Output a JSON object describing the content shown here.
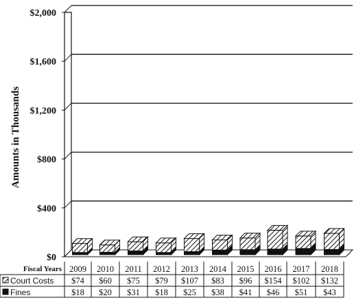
{
  "chart_data": {
    "type": "bar",
    "stacked": true,
    "three_d": true,
    "ylabel": "Amounts in Thousands",
    "ylim": [
      0,
      2000
    ],
    "yticks": [
      0,
      400,
      800,
      1200,
      1600,
      2000
    ],
    "ytick_labels": [
      "$0",
      "$400",
      "$800",
      "$1,200",
      "$1,600",
      "$2,000"
    ],
    "grid": true,
    "table_header": "Fiscal Years",
    "categories": [
      "2009",
      "2010",
      "2011",
      "2012",
      "2013",
      "2014",
      "2015",
      "2016",
      "2017",
      "2018"
    ],
    "series": [
      {
        "name": "Fines",
        "pattern": "solid",
        "color": "#111111",
        "values": [
          18,
          20,
          31,
          18,
          25,
          38,
          41,
          46,
          51,
          43
        ],
        "labels": [
          "$18",
          "$20",
          "$31",
          "$18",
          "$25",
          "$38",
          "$41",
          "$46",
          "$51",
          "$43"
        ]
      },
      {
        "name": "Court Costs",
        "pattern": "diagonal-hatch",
        "color": "#111111",
        "values": [
          74,
          60,
          75,
          79,
          107,
          83,
          96,
          154,
          102,
          132
        ],
        "labels": [
          "$74",
          "$60",
          "$75",
          "$79",
          "$107",
          "$83",
          "$96",
          "$154",
          "$102",
          "$132"
        ]
      }
    ],
    "table_rows": [
      "Court Costs",
      "Fines"
    ]
  }
}
